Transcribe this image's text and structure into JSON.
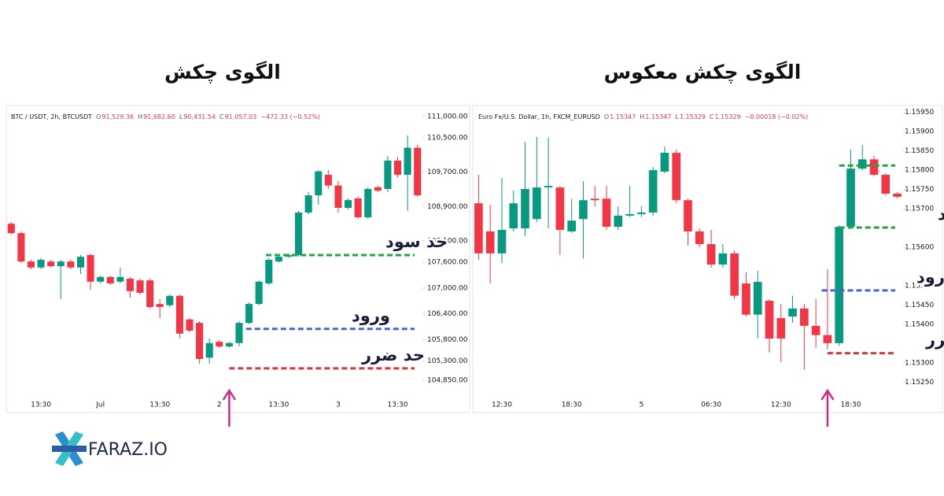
{
  "chart_data": [
    {
      "type": "candlestick",
      "title": "الگوی چکش",
      "header": {
        "symbol": "BTC / USDT, 2h, BTCUSDT",
        "fields": [
          {
            "key": "O",
            "value": "91,529.36"
          },
          {
            "key": "H",
            "value": "91,682.60"
          },
          {
            "key": "L",
            "value": "90,431.54"
          },
          {
            "key": "C",
            "value": "91,057.03"
          }
        ],
        "change": "−472.33 (−0.52%)"
      },
      "categories": [
        null,
        null,
        null,
        "13:30",
        null,
        null,
        null,
        null,
        null,
        "Jul",
        null,
        null,
        null,
        null,
        null,
        "13:30",
        null,
        null,
        null,
        null,
        null,
        "2",
        null,
        null,
        null,
        null,
        null,
        "13:30",
        null,
        null,
        null,
        null,
        null,
        "3",
        null,
        null,
        null,
        null,
        null,
        "13:30",
        null,
        null
      ],
      "open": [
        108500,
        108280,
        107620,
        107480,
        107620,
        107510,
        107620,
        107480,
        107770,
        107150,
        107260,
        107150,
        107220,
        107180,
        107180,
        106630,
        106600,
        106820,
        106270,
        106190,
        105380,
        105750,
        105640,
        105720,
        106190,
        106630,
        107110,
        107620,
        107730,
        107770,
        108760,
        109160,
        109640,
        109390,
        108870,
        109090,
        108650,
        109350,
        109310,
        109970,
        109640,
        110270
      ],
      "high": [
        108540,
        108320,
        107660,
        107700,
        107660,
        107660,
        107660,
        107770,
        107810,
        107290,
        107290,
        107480,
        107260,
        107220,
        107220,
        106740,
        106850,
        106850,
        106300,
        106230,
        105830,
        105790,
        105750,
        106230,
        106670,
        107180,
        107700,
        107770,
        107810,
        108800,
        109240,
        109750,
        109750,
        109500,
        109090,
        109130,
        109350,
        109390,
        110080,
        110050,
        110560,
        110340
      ],
      "low": [
        108250,
        107590,
        107440,
        107440,
        107480,
        106740,
        107440,
        107330,
        106960,
        107110,
        107070,
        107110,
        106780,
        106850,
        106520,
        106300,
        106560,
        105830,
        105970,
        105240,
        105240,
        105610,
        105610,
        105640,
        106160,
        106600,
        107070,
        107590,
        107700,
        107730,
        108720,
        108940,
        109310,
        108760,
        108830,
        108610,
        108610,
        109240,
        109240,
        109570,
        108800,
        109130
      ],
      "close": [
        108280,
        107620,
        107480,
        107660,
        107510,
        107620,
        107480,
        107730,
        107150,
        107260,
        107110,
        107260,
        106930,
        106890,
        106560,
        106560,
        106820,
        105940,
        106010,
        105350,
        105720,
        105640,
        105720,
        106190,
        106630,
        107150,
        107660,
        107730,
        107770,
        108760,
        109160,
        109720,
        109390,
        108870,
        109050,
        108650,
        109310,
        109270,
        109970,
        109640,
        110270,
        109160
      ],
      "up_color": "#089981",
      "down_color": "#f23645",
      "ylim": [
        104120,
        111180
      ],
      "yticks": [
        {
          "value": 111000,
          "label": "111,000.00"
        },
        {
          "value": 110500,
          "label": "110,500.00"
        },
        {
          "value": 109700,
          "label": "109,700.00"
        },
        {
          "value": 108900,
          "label": "108,900.00"
        },
        {
          "value": 108100,
          "label": "108,100.00"
        },
        {
          "value": 107600,
          "label": "107,600.00"
        },
        {
          "value": 107000,
          "label": "107,000.00"
        },
        {
          "value": 106400,
          "label": "106,400.00"
        },
        {
          "value": 105800,
          "label": "105,800.00"
        },
        {
          "value": 105300,
          "label": "105,300.00"
        },
        {
          "value": 104850,
          "label": "104,850.00"
        }
      ],
      "levels": [
        {
          "value": 107770,
          "color": "#22a447",
          "label": "حد سود",
          "start": 25.7
        },
        {
          "value": 106050,
          "color": "#4a63d8",
          "label": "ورود",
          "start": 23.7
        },
        {
          "value": 105130,
          "color": "#d9363e",
          "label": "حد ضرر",
          "start": 22
        }
      ]
    },
    {
      "type": "candlestick",
      "title": "الگوی چکش معکوس",
      "header": {
        "symbol": "Euro Fx/U.S. Dollar, 1h, FXCM_EURUSD",
        "fields": [
          {
            "key": "O",
            "value": "1.15347"
          },
          {
            "key": "H",
            "value": "1.15347"
          },
          {
            "key": "L",
            "value": "1.15329"
          },
          {
            "key": "C",
            "value": "1.15329"
          }
        ],
        "change": "−0.00018 (−0.02%)"
      },
      "categories": [
        null,
        null,
        "12:30",
        null,
        null,
        null,
        null,
        null,
        "18:30",
        null,
        null,
        null,
        null,
        null,
        "5",
        null,
        null,
        null,
        null,
        null,
        "06:30",
        null,
        null,
        null,
        null,
        null,
        "12:30",
        null,
        null,
        null,
        null,
        null,
        "18:30",
        null,
        null,
        null,
        null
      ],
      "open": [
        1.15714,
        1.15641,
        1.15584,
        1.15649,
        1.15649,
        1.15673,
        1.15755,
        1.15755,
        1.15641,
        1.15673,
        1.15726,
        1.15726,
        1.15653,
        1.15682,
        1.15686,
        1.1569,
        1.15796,
        1.15845,
        1.15722,
        1.15641,
        1.15608,
        1.15555,
        1.15584,
        1.15506,
        1.15425,
        1.15461,
        1.15416,
        1.1542,
        1.15441,
        1.15396,
        1.15372,
        1.15351,
        1.15653,
        1.15804,
        1.15828,
        1.15788,
        1.15739
      ],
      "high": [
        1.15788,
        1.1571,
        1.1578,
        1.15747,
        1.15873,
        1.15886,
        1.15884,
        1.15759,
        1.15726,
        1.15771,
        1.15759,
        1.15759,
        1.15706,
        1.15759,
        1.15706,
        1.15808,
        1.15861,
        1.15853,
        1.15726,
        1.15649,
        1.15645,
        1.15608,
        1.15592,
        1.15535,
        1.15539,
        1.15465,
        1.15453,
        1.15474,
        1.15453,
        1.15465,
        1.15543,
        1.15657,
        1.15853,
        1.15865,
        1.15837,
        1.15792,
        1.15743
      ],
      "low": [
        1.15567,
        1.15506,
        1.15559,
        1.15641,
        1.15629,
        1.15665,
        1.15649,
        1.1558,
        1.15637,
        1.15571,
        1.15706,
        1.15645,
        1.15645,
        1.15678,
        1.15678,
        1.15682,
        1.15792,
        1.15714,
        1.15604,
        1.156,
        1.15547,
        1.15547,
        1.15465,
        1.1542,
        1.15363,
        1.15327,
        1.15302,
        1.15404,
        1.15282,
        1.15339,
        1.15335,
        1.15343,
        1.15649,
        1.158,
        1.15784,
        1.15735,
        1.15726
      ],
      "close": [
        1.15584,
        1.15584,
        1.15645,
        1.15714,
        1.15751,
        1.15755,
        1.15759,
        1.15645,
        1.15669,
        1.15722,
        1.15722,
        1.15653,
        1.15682,
        1.15686,
        1.1569,
        1.158,
        1.15845,
        1.15722,
        1.15641,
        1.15608,
        1.15555,
        1.15584,
        1.15474,
        1.15425,
        1.1551,
        1.15363,
        1.15363,
        1.15441,
        1.15396,
        1.15372,
        1.15351,
        1.15653,
        1.15804,
        1.15828,
        1.15788,
        1.15739,
        1.15731
      ],
      "up_color": "#089981",
      "down_color": "#f23645",
      "ylim": [
        1.15173,
        1.1598
      ],
      "yticks": [
        {
          "value": 1.1595,
          "label": "1.15950"
        },
        {
          "value": 1.159,
          "label": "1.15900"
        },
        {
          "value": 1.1585,
          "label": "1.15850"
        },
        {
          "value": 1.158,
          "label": "1.15800"
        },
        {
          "value": 1.1575,
          "label": "1.15750"
        },
        {
          "value": 1.157,
          "label": "1.15700"
        },
        {
          "value": 1.156,
          "label": "1.15600"
        },
        {
          "value": 1.155,
          "label": "1.15500"
        },
        {
          "value": 1.1545,
          "label": "1.15450"
        },
        {
          "value": 1.154,
          "label": "1.15400"
        },
        {
          "value": 1.153,
          "label": "1.15300"
        },
        {
          "value": 1.1525,
          "label": "1.15250"
        }
      ],
      "levels": [
        {
          "value": 1.15812,
          "color": "#22a447",
          "start": 31
        },
        {
          "value": 1.15651,
          "color": "#22a447",
          "label": "حد سود",
          "start": 31
        },
        {
          "value": 1.15488,
          "color": "#4a63d8",
          "label": "ورود",
          "start": 29.5
        },
        {
          "value": 1.15325,
          "color": "#d9363e",
          "label": "حد ضرر",
          "start": 30
        }
      ]
    }
  ],
  "logo": {
    "text": "FARAZ.IO"
  }
}
